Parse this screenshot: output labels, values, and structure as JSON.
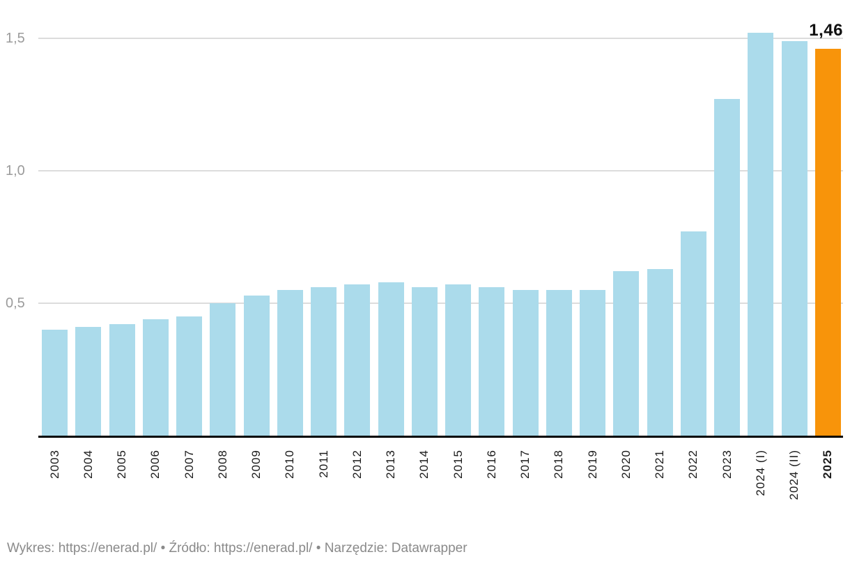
{
  "chart_data": {
    "type": "bar",
    "categories": [
      "2003",
      "2004",
      "2005",
      "2006",
      "2007",
      "2008",
      "2009",
      "2010",
      "2011",
      "2012",
      "2013",
      "2014",
      "2015",
      "2016",
      "2017",
      "2018",
      "2019",
      "2020",
      "2021",
      "2022",
      "2023",
      "2024 (I)",
      "2024 (II)",
      "2025"
    ],
    "values": [
      0.4,
      0.41,
      0.42,
      0.44,
      0.45,
      0.5,
      0.53,
      0.55,
      0.56,
      0.57,
      0.58,
      0.56,
      0.57,
      0.56,
      0.55,
      0.55,
      0.55,
      0.62,
      0.63,
      0.77,
      1.27,
      1.52,
      1.49,
      1.46
    ],
    "y_ticks": [
      {
        "value": 0.5,
        "label": "0,5"
      },
      {
        "value": 1.0,
        "label": "1,0"
      },
      {
        "value": 1.5,
        "label": "1,5"
      }
    ],
    "ylim": [
      0,
      1.54
    ],
    "grid": true,
    "legend_position": "none",
    "bar_color": "#ABDBEB",
    "highlight": {
      "index": 23,
      "color": "#F8940A",
      "value_label": "1,46",
      "bold_category": true
    }
  },
  "footer": {
    "chart_label": "Wykres:",
    "chart_url": "https://enerad.pl/",
    "separator": "•",
    "source_label": "Źródło:",
    "source_url": "https://enerad.pl/",
    "tool_label": "Narzędzie:",
    "tool_name": "Datawrapper"
  },
  "colors": {
    "background": "#FFFFFF",
    "axis_line": "#000000",
    "gridline": "#DCDCDC",
    "y_tick_label": "#9B9B9B",
    "x_tick_label": "#1A1A1A",
    "annotation_text": "#111111",
    "footer_text": "#8A8A8A"
  }
}
